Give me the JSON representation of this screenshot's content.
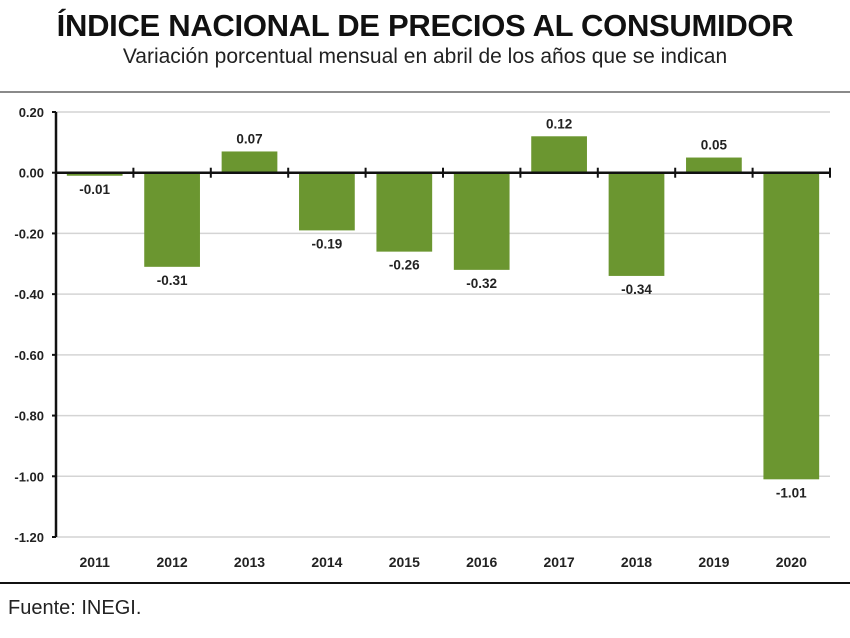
{
  "header": {
    "title": "ÍNDICE NACIONAL DE PRECIOS AL CONSUMIDOR",
    "subtitle": "Variación porcentual mensual en abril de los años que se indican"
  },
  "footer": {
    "source": "Fuente:  INEGI."
  },
  "chart_data": {
    "type": "bar",
    "title": "ÍNDICE NACIONAL DE PRECIOS AL CONSUMIDOR",
    "subtitle": "Variación porcentual mensual en abril de los años que se indican",
    "xlabel": "",
    "ylabel": "",
    "categories": [
      "2011",
      "2012",
      "2013",
      "2014",
      "2015",
      "2016",
      "2017",
      "2018",
      "2019",
      "2020"
    ],
    "values": [
      -0.01,
      -0.31,
      0.07,
      -0.19,
      -0.26,
      -0.32,
      0.12,
      -0.34,
      0.05,
      -1.01
    ],
    "data_labels": [
      "-0.01",
      "-0.31",
      "0.07",
      "-0.19",
      "-0.26",
      "-0.32",
      "0.12",
      "-0.34",
      "0.05",
      "-1.01"
    ],
    "ylim": [
      -1.2,
      0.2
    ],
    "yticks": [
      0.2,
      0.0,
      -0.2,
      -0.4,
      -0.6,
      -0.8,
      -1.0,
      -1.2
    ],
    "ytick_labels": [
      "0.20",
      "0.00",
      "-0.20",
      "-0.40",
      "-0.60",
      "-0.80",
      "-1.00",
      "-1.20"
    ],
    "grid": true,
    "legend": "none",
    "bar_color": "#6b9630",
    "source": "Fuente: INEGI."
  }
}
